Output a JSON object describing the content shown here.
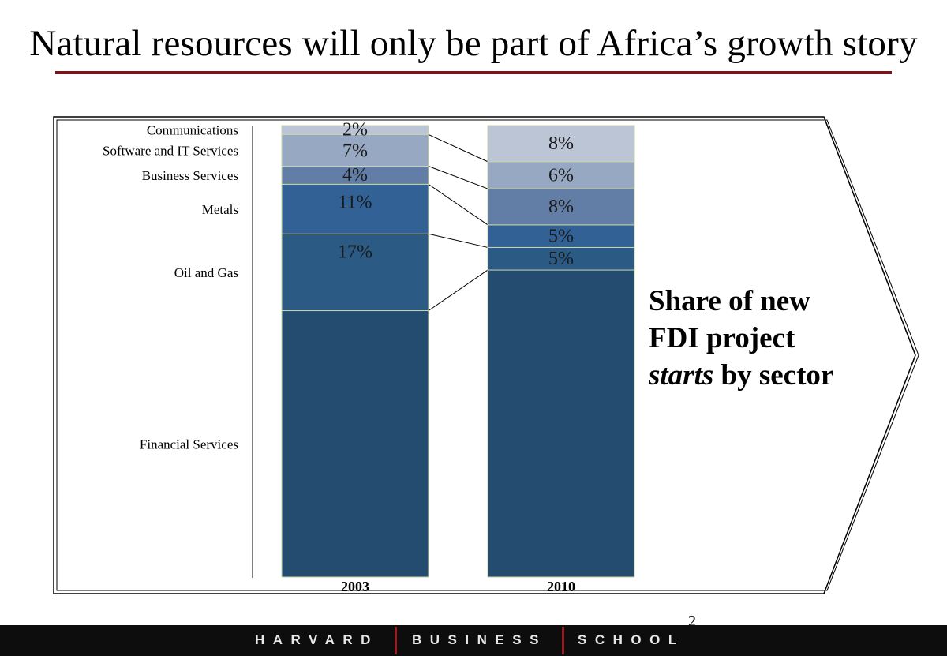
{
  "slide": {
    "title": "Natural resources will only be part of Africa’s growth story",
    "side_heading": {
      "line1": "Share of new",
      "line2": "FDI project",
      "line3_italic": "starts",
      "line3_rest": " by sector"
    },
    "page_number": "2"
  },
  "footer": {
    "words": [
      "HARVARD",
      "BUSINESS",
      "SCHOOL"
    ],
    "bar_color": "#9a1b20"
  },
  "chart_data": {
    "type": "bar",
    "stacked": true,
    "categories": [
      "2003",
      "2010"
    ],
    "series": [
      {
        "name": "Financial Services",
        "values": [
          null,
          null
        ],
        "color": "#244b70"
      },
      {
        "name": "Oil and Gas",
        "values": [
          17,
          5
        ],
        "color": "#2b5a84"
      },
      {
        "name": "Metals",
        "values": [
          11,
          5
        ],
        "color": "#326295"
      },
      {
        "name": "Business Services",
        "values": [
          4,
          8
        ],
        "color": "#627ea6"
      },
      {
        "name": "Software and IT Services",
        "values": [
          7,
          6
        ],
        "color": "#97a9c2"
      },
      {
        "name": "Communications",
        "values": [
          2,
          8
        ],
        "color": "#bcc5d6"
      }
    ],
    "data_labels": [
      [
        "",
        "17%",
        "11%",
        "4%",
        "7%",
        "2%"
      ],
      [
        "",
        "5%",
        "5%",
        "8%",
        "6%",
        "8%"
      ]
    ],
    "legend_position": "left"
  }
}
